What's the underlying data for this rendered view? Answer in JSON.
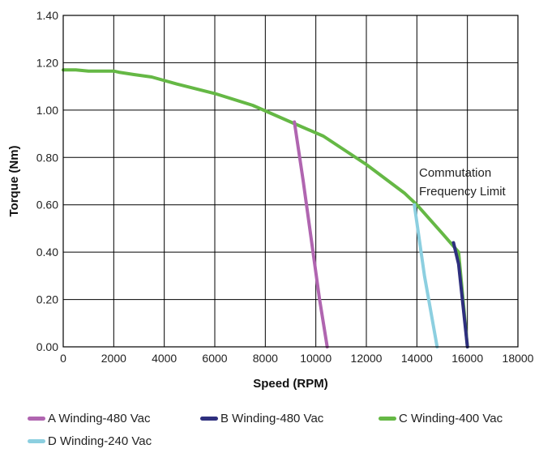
{
  "chart_data": {
    "type": "line",
    "title": "",
    "xlabel": "Speed (RPM)",
    "ylabel": "Torque (Nm)",
    "xlim": [
      0,
      18000
    ],
    "ylim": [
      0,
      1.4
    ],
    "x_ticks": [
      "0",
      "2000",
      "4000",
      "6000",
      "8000",
      "10000",
      "12000",
      "14000",
      "16000",
      "18000"
    ],
    "y_ticks": [
      "0.00",
      "0.20",
      "0.40",
      "0.60",
      "0.80",
      "1.00",
      "1.20",
      "1.40"
    ],
    "x_tick_values": [
      0,
      2000,
      4000,
      6000,
      8000,
      10000,
      12000,
      14000,
      16000,
      18000
    ],
    "y_tick_values": [
      0,
      0.2,
      0.4,
      0.6,
      0.8,
      1.0,
      1.2,
      1.4
    ],
    "grid": true,
    "legend_position": "bottom",
    "annotation": [
      "Commutation",
      "Frequency Limit"
    ],
    "series": [
      {
        "name": "A Winding-480 Vac",
        "color": "#b065b0",
        "x": [
          9150,
          9500,
          10150,
          10450
        ],
        "y": [
          0.95,
          0.7,
          0.2,
          0.0
        ]
      },
      {
        "name": "B Winding-480 Vac",
        "color": "#2e2f7e",
        "x": [
          15450,
          15650,
          16000
        ],
        "y": [
          0.44,
          0.35,
          0.0
        ]
      },
      {
        "name": "C Winding-400 Vac",
        "color": "#65b845",
        "x": [
          0,
          500,
          1000,
          2000,
          2200,
          2800,
          3500,
          4500,
          6000,
          7500,
          9000,
          10300,
          12000,
          13500,
          14000,
          15000,
          15650,
          16000
        ],
        "y": [
          1.17,
          1.17,
          1.165,
          1.165,
          1.16,
          1.15,
          1.14,
          1.11,
          1.07,
          1.02,
          0.95,
          0.89,
          0.77,
          0.65,
          0.6,
          0.48,
          0.4,
          0.0
        ]
      },
      {
        "name": "D Winding-240 Vac",
        "color": "#8ccfe0",
        "x": [
          13900,
          14300,
          14800
        ],
        "y": [
          0.6,
          0.3,
          0.0
        ]
      }
    ]
  }
}
